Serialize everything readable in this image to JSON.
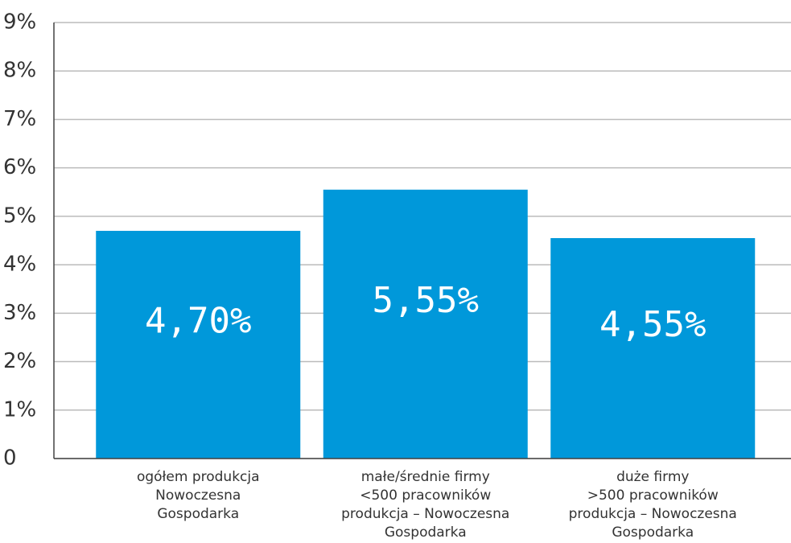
{
  "chart_data": {
    "type": "bar",
    "categories": [
      "ogółem produkcja\nNowoczesna\nGospodarka",
      "małe/średnie firmy\n<500 pracowników\nprodukcja – Nowoczesna\nGospodarka",
      "duże firmy\n>500 pracowników\nprodukcja – Nowoczesna\nGospodarka"
    ],
    "values": [
      4.7,
      5.55,
      4.55
    ],
    "value_labels": [
      "4,70%",
      "5,55%",
      "4,55%"
    ],
    "color": "#0098da",
    "ylim": [
      0,
      9
    ],
    "yticks": [
      0,
      {
        "value": 1,
        "label": "1%"
      },
      {
        "value": 2,
        "label": "2%"
      },
      {
        "value": 3,
        "label": "3%"
      },
      {
        "value": 4,
        "label": "4%"
      },
      {
        "value": 5,
        "label": "5%"
      },
      {
        "value": 6,
        "label": "6%"
      },
      {
        "value": 7,
        "label": "7%"
      },
      {
        "value": 8,
        "label": "8%"
      },
      {
        "value": 9,
        "label": "9%"
      }
    ],
    "grid": true
  }
}
